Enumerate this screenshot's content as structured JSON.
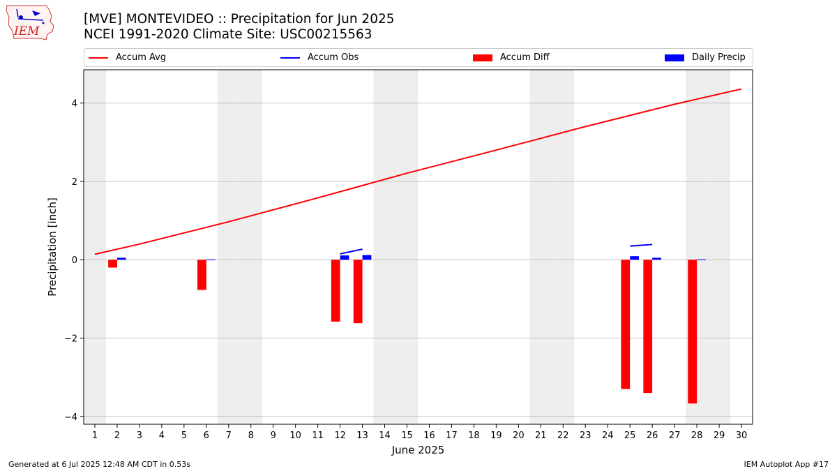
{
  "header": {
    "title": "[MVE] MONTEVIDEO :: Precipitation for Jun 2025",
    "subtitle": "NCEI 1991-2020 Climate Site: USC00215563",
    "logo_text": "IEM"
  },
  "footer": {
    "generated": "Generated at 6 Jul 2025 12:48 AM CDT in 0.53s",
    "app": "IEM Autoplot App #17"
  },
  "colors": {
    "accum_avg": "#ff0000",
    "accum_obs": "#0000ff",
    "accum_diff": "#ff0000",
    "daily_precip": "#0000ff",
    "weekend_shade": "#eeeeee",
    "grid": "#b0b0b0"
  },
  "chart_data": {
    "type": "bar",
    "xlabel": "June 2025",
    "ylabel": "Precipitation [inch]",
    "xlim": [
      0.5,
      30.5
    ],
    "ylim": [
      -4.2,
      4.85
    ],
    "x_ticks": [
      1,
      2,
      3,
      4,
      5,
      6,
      7,
      8,
      9,
      10,
      11,
      12,
      13,
      14,
      15,
      16,
      17,
      18,
      19,
      20,
      21,
      22,
      23,
      24,
      25,
      26,
      27,
      28,
      29,
      30
    ],
    "y_ticks": [
      -4,
      -2,
      0,
      2,
      4
    ],
    "y_tick_labels": [
      "−4",
      "−2",
      "0",
      "2",
      "4"
    ],
    "grid": "horizontal",
    "legend_position": "top",
    "weekend_days": [
      1,
      7,
      8,
      14,
      15,
      21,
      22,
      28,
      29
    ],
    "legend": [
      "Accum Avg",
      "Accum Obs",
      "Accum Diff",
      "Daily Precip"
    ],
    "accum_avg": {
      "days": [
        1,
        3,
        7,
        11,
        15,
        19,
        23,
        27,
        30
      ],
      "values": [
        0.14,
        0.4,
        0.97,
        1.58,
        2.21,
        2.8,
        3.4,
        3.97,
        4.36
      ]
    },
    "accum_obs": [
      {
        "days": [
          12,
          13
        ],
        "values": [
          0.15,
          0.27
        ]
      },
      {
        "days": [
          25,
          26
        ],
        "values": [
          0.35,
          0.39
        ]
      }
    ],
    "accum_diff": {
      "days": [
        2,
        6,
        12,
        13,
        25,
        26,
        28
      ],
      "values": [
        -0.2,
        -0.77,
        -1.58,
        -1.62,
        -3.3,
        -3.4,
        -3.67
      ]
    },
    "daily_precip": {
      "days": [
        2,
        6,
        12,
        13,
        25,
        26,
        28
      ],
      "values": [
        0.05,
        0.01,
        0.11,
        0.12,
        0.09,
        0.05,
        0.01
      ]
    }
  }
}
